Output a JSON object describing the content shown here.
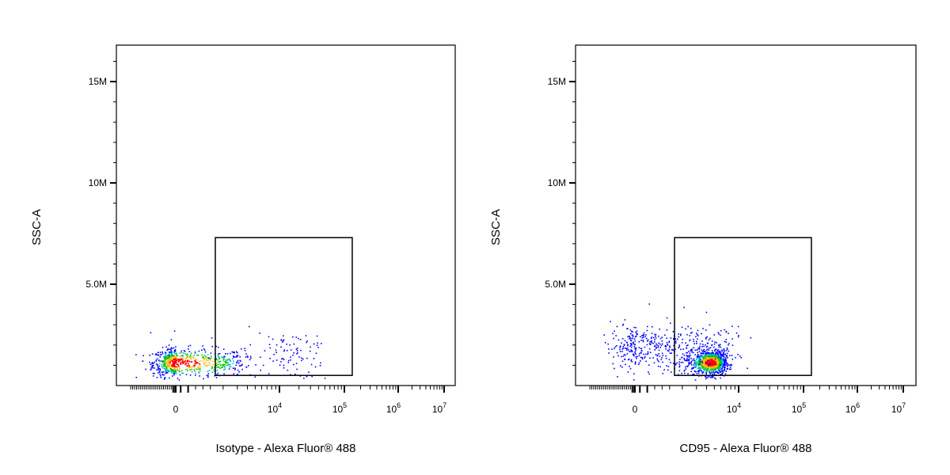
{
  "colors": {
    "density_low": "#0000ff",
    "density_mid": "#00c800",
    "density_high": "#ff0000",
    "axis": "#000000",
    "gate": "#000000"
  },
  "chart_data": [
    {
      "type": "scatter",
      "subtype": "flow-cytometry-density-dot-plot",
      "title": "",
      "xlabel": "Isotype - Alexa Fluor® 488",
      "ylabel": "SSC-A",
      "x_scale": "biexponential",
      "x_ticks": [
        {
          "value": "0",
          "base": "0",
          "exp": ""
        },
        {
          "value": 10000,
          "base": "10",
          "exp": "4"
        },
        {
          "value": 100000,
          "base": "10",
          "exp": "5"
        },
        {
          "value": 1000000,
          "base": "10",
          "exp": "6"
        },
        {
          "value": 10000000,
          "base": "10",
          "exp": "7"
        }
      ],
      "y_ticks": [
        {
          "value": 5000000,
          "label": "5.0M"
        },
        {
          "value": 10000000,
          "label": "10M"
        },
        {
          "value": 15000000,
          "label": "15M"
        }
      ],
      "ylim": [
        0,
        16800000
      ],
      "gate": {
        "x_min": 1600,
        "x_max": 140000,
        "y_min": 500000,
        "y_max": 7300000
      },
      "populations": [
        {
          "x_center": 0,
          "x_spread": 1800,
          "y_center": 1150000,
          "y_spread": 350000,
          "count": 700,
          "density": "high"
        },
        {
          "x_center": 7000,
          "x_spread": 9000,
          "y_center": 1500000,
          "y_spread": 700000,
          "count": 120,
          "density": "low"
        }
      ],
      "grid": false
    },
    {
      "type": "scatter",
      "subtype": "flow-cytometry-density-dot-plot",
      "title": "",
      "xlabel": "CD95 - Alexa Fluor® 488",
      "ylabel": "SSC-A",
      "x_scale": "biexponential",
      "x_ticks": [
        {
          "value": "0",
          "base": "0",
          "exp": ""
        },
        {
          "value": 10000,
          "base": "10",
          "exp": "4"
        },
        {
          "value": 100000,
          "base": "10",
          "exp": "5"
        },
        {
          "value": 1000000,
          "base": "10",
          "exp": "6"
        },
        {
          "value": 10000000,
          "base": "10",
          "exp": "7"
        }
      ],
      "y_ticks": [
        {
          "value": 5000000,
          "label": "5.0M"
        },
        {
          "value": 10000000,
          "label": "10M"
        },
        {
          "value": 15000000,
          "label": "15M"
        }
      ],
      "ylim": [
        0,
        16800000
      ],
      "gate": {
        "x_min": 1600,
        "x_max": 140000,
        "y_min": 500000,
        "y_max": 7300000
      },
      "populations": [
        {
          "x_center": 4500,
          "x_spread": 1200,
          "y_center": 1150000,
          "y_spread": 300000,
          "count": 900,
          "density": "high"
        },
        {
          "x_center": -100,
          "x_spread": 1800,
          "y_center": 1900000,
          "y_spread": 600000,
          "count": 450,
          "density": "low"
        }
      ],
      "grid": false
    }
  ]
}
